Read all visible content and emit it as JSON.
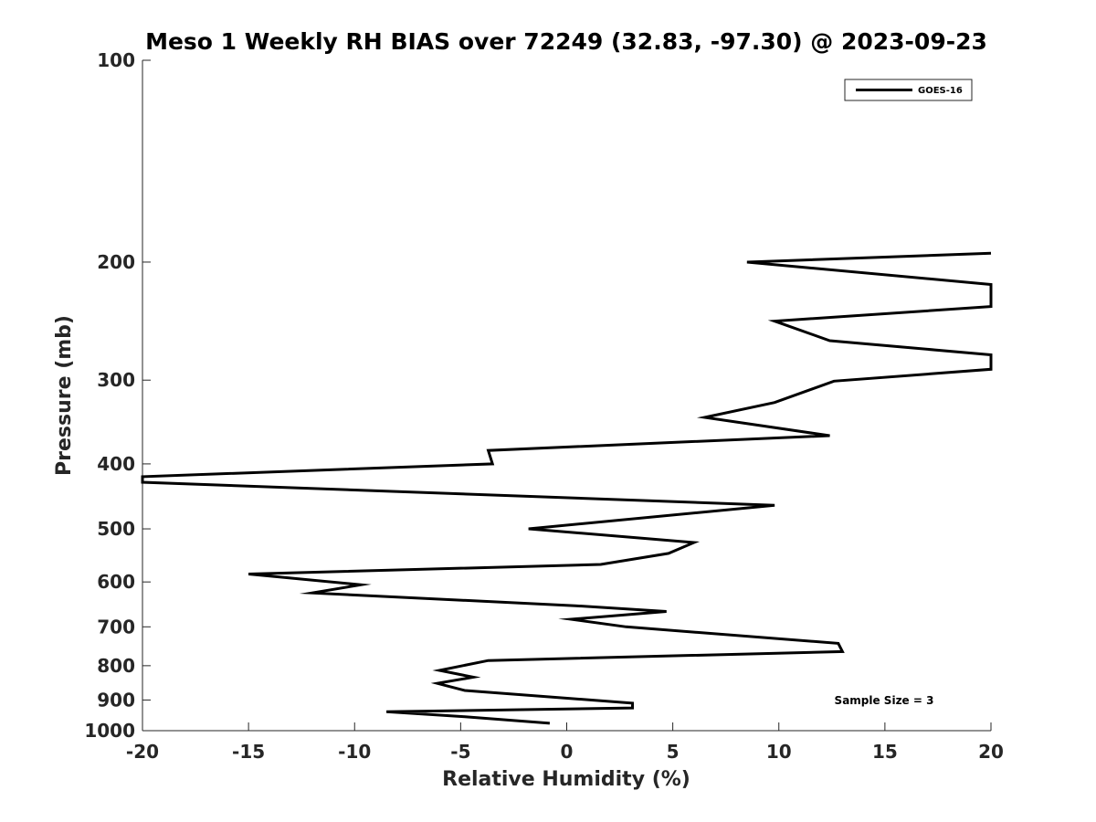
{
  "chart_data": {
    "type": "line",
    "title": "Meso 1 Weekly RH BIAS over 72249 (32.83, -97.30) @ 2023-09-23",
    "xlabel": "Relative Humidity (%)",
    "ylabel": "Pressure (mb)",
    "xlim": [
      -20,
      20
    ],
    "ylim": [
      1000,
      100
    ],
    "y_scale": "log",
    "grid": false,
    "x_ticks": [
      "-20",
      "-15",
      "-10",
      "-5",
      "0",
      "5",
      "10",
      "15",
      "20"
    ],
    "y_ticks": [
      "100",
      "200",
      "300",
      "400",
      "500",
      "600",
      "700",
      "800",
      "900",
      "1000"
    ],
    "legend": {
      "position": "top-right",
      "entries": [
        "GOES-16"
      ]
    },
    "annotation": "Sample Size = 3",
    "series": [
      {
        "name": "GOES-16",
        "color": "#000000",
        "points": [
          [
            20.0,
            194
          ],
          [
            8.5,
            200
          ],
          [
            20.0,
            216
          ],
          [
            20.0,
            233
          ],
          [
            9.8,
            245
          ],
          [
            12.4,
            262
          ],
          [
            20.0,
            275
          ],
          [
            20.0,
            289
          ],
          [
            12.6,
            301
          ],
          [
            9.8,
            324
          ],
          [
            6.5,
            341
          ],
          [
            12.4,
            363
          ],
          [
            -3.7,
            382
          ],
          [
            -3.5,
            400
          ],
          [
            -20.0,
            418
          ],
          [
            -20.0,
            426
          ],
          [
            9.8,
            461
          ],
          [
            -1.8,
            500
          ],
          [
            6.0,
            524
          ],
          [
            4.8,
            544
          ],
          [
            1.6,
            565
          ],
          [
            -15.0,
            584
          ],
          [
            -9.7,
            606
          ],
          [
            -12.0,
            623
          ],
          [
            0.4,
            651
          ],
          [
            4.7,
            664
          ],
          [
            0.2,
            682
          ],
          [
            2.8,
            700
          ],
          [
            12.8,
            741
          ],
          [
            13.0,
            762
          ],
          [
            -3.7,
            786
          ],
          [
            -6.0,
            813
          ],
          [
            -4.4,
            832
          ],
          [
            -6.1,
            850
          ],
          [
            -4.8,
            871
          ],
          [
            3.1,
            910
          ],
          [
            3.1,
            925
          ],
          [
            -8.5,
            937
          ],
          [
            -4.8,
            953
          ],
          [
            -0.8,
            975
          ]
        ]
      }
    ]
  }
}
